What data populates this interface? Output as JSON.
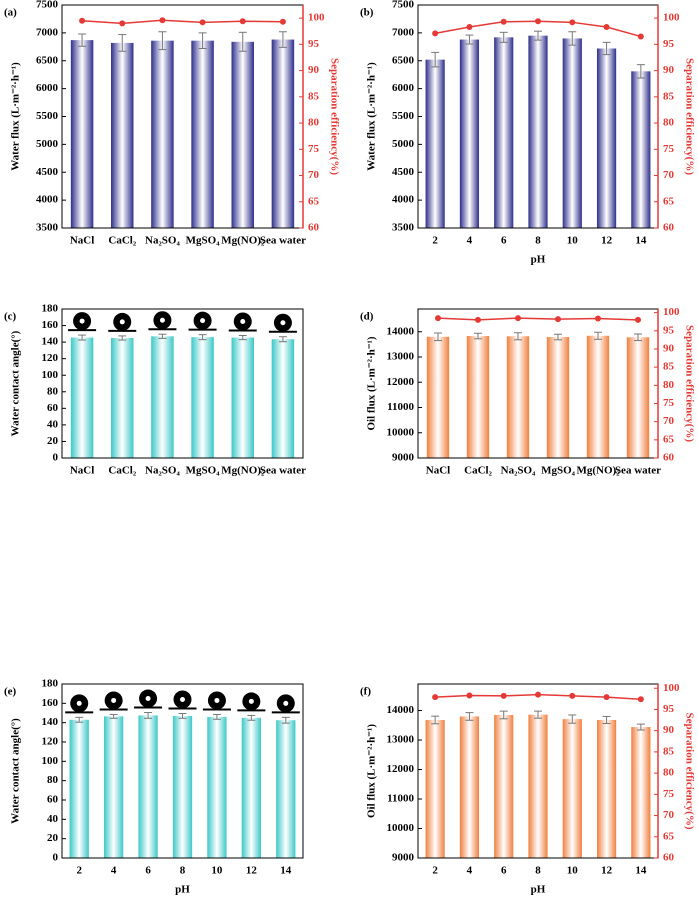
{
  "chart_data": [
    {
      "type": "bar_line",
      "label": "(a)",
      "ylabel": "Water flux (L·m⁻²·h⁻¹)",
      "y2label": "Separation efficiency(%)",
      "categories": [
        "NaCl",
        "CaCl₂",
        "Na₂SO₄",
        "MgSO₄",
        "Mg(NO)₂",
        "Sea water"
      ],
      "ylim": [
        3500,
        7500
      ],
      "yticks": [
        3500,
        4000,
        4500,
        5000,
        5500,
        6000,
        6500,
        7000,
        7500
      ],
      "y2lim": [
        60,
        102.5
      ],
      "y2ticks": [
        60,
        65,
        70,
        75,
        80,
        85,
        90,
        95,
        100
      ],
      "series": [
        {
          "color": "#2e2e8c",
          "values": [
            6870,
            6820,
            6860,
            6860,
            6840,
            6880
          ],
          "errors": [
            110,
            150,
            160,
            140,
            170,
            140
          ]
        },
        {
          "color": "#e53935",
          "axis": "y2",
          "values": [
            99.5,
            99.0,
            99.6,
            99.2,
            99.4,
            99.3
          ]
        }
      ]
    },
    {
      "type": "bar_line",
      "label": "(b)",
      "ylabel": "Water flux (L·m⁻²·h⁻¹)",
      "y2label": "Separation efficiency(%)",
      "xlabel": "pH",
      "categories": [
        "2",
        "4",
        "6",
        "8",
        "10",
        "12",
        "14"
      ],
      "ylim": [
        3500,
        7500
      ],
      "yticks": [
        3500,
        4000,
        4500,
        5000,
        5500,
        6000,
        6500,
        7000,
        7500
      ],
      "y2lim": [
        60,
        102.5
      ],
      "y2ticks": [
        60,
        65,
        70,
        75,
        80,
        85,
        90,
        95,
        100
      ],
      "series": [
        {
          "color": "#2e2e8c",
          "values": [
            6520,
            6880,
            6920,
            6950,
            6900,
            6720,
            6310
          ],
          "errors": [
            130,
            80,
            90,
            80,
            120,
            110,
            120
          ]
        },
        {
          "color": "#e53935",
          "axis": "y2",
          "values": [
            97.1,
            98.3,
            99.3,
            99.4,
            99.2,
            98.3,
            96.5
          ]
        }
      ]
    },
    {
      "type": "bar",
      "label": "(c)",
      "ylabel": "Water contact angle(°)",
      "categories": [
        "NaCl",
        "CaCl₂",
        "Na₂SO₄",
        "MgSO₄",
        "Mg(NO)₂",
        "Sea water"
      ],
      "ylim": [
        0,
        180
      ],
      "yticks": [
        0,
        20,
        40,
        60,
        80,
        100,
        120,
        140,
        160,
        180
      ],
      "series": [
        {
          "color": "#3cc8c8",
          "values": [
            145.5,
            145,
            147,
            146,
            145.5,
            143.5
          ],
          "errors": [
            3,
            2.5,
            2.5,
            3,
            2.5,
            3
          ]
        }
      ]
    },
    {
      "type": "bar_line",
      "label": "(d)",
      "ylabel": "Oil flux (L·m⁻²·h⁻¹)",
      "y2label": "Separation efficiency(%)",
      "categories": [
        "NaCl",
        "CaCl₂",
        "Na₂SO₄",
        "MgSO₄",
        "Mg(NO)₂",
        "Sea water"
      ],
      "ylim": [
        9000,
        14900
      ],
      "yticks": [
        9000,
        10000,
        11000,
        12000,
        13000,
        14000
      ],
      "y2lim": [
        60,
        101
      ],
      "y2ticks": [
        60,
        65,
        70,
        75,
        80,
        85,
        90,
        95,
        100
      ],
      "series": [
        {
          "color": "#f08040",
          "values": [
            13800,
            13830,
            13820,
            13790,
            13840,
            13780
          ],
          "errors": [
            150,
            110,
            140,
            110,
            140,
            130
          ]
        },
        {
          "color": "#e53935",
          "axis": "y2",
          "values": [
            98.5,
            98.0,
            98.5,
            98.2,
            98.4,
            98.0
          ]
        }
      ]
    },
    {
      "type": "bar",
      "label": "(e)",
      "ylabel": "Water contact angle(°)",
      "xlabel": "pH",
      "categories": [
        "2",
        "4",
        "6",
        "8",
        "10",
        "12",
        "14"
      ],
      "ylim": [
        0,
        180
      ],
      "yticks": [
        0,
        20,
        40,
        60,
        80,
        100,
        120,
        140,
        160,
        180
      ],
      "series": [
        {
          "color": "#3cc8c8",
          "values": [
            143,
            146.5,
            147.5,
            147,
            146,
            145,
            142.5
          ],
          "errors": [
            2.5,
            2,
            3,
            2.5,
            2.5,
            2.5,
            3
          ]
        }
      ]
    },
    {
      "type": "bar_line",
      "label": "(f)",
      "ylabel": "Oil flux (L·m⁻²·h⁻¹)",
      "y2label": "Separation efficiency(%)",
      "xlabel": "pH",
      "categories": [
        "2",
        "4",
        "6",
        "8",
        "10",
        "12",
        "14"
      ],
      "ylim": [
        9000,
        14900
      ],
      "yticks": [
        9000,
        10000,
        11000,
        12000,
        13000,
        14000
      ],
      "y2lim": [
        60,
        101
      ],
      "y2ticks": [
        60,
        65,
        70,
        75,
        80,
        85,
        90,
        95,
        100
      ],
      "series": [
        {
          "color": "#f08040",
          "values": [
            13680,
            13800,
            13850,
            13860,
            13710,
            13680,
            13440
          ],
          "errors": [
            130,
            130,
            130,
            120,
            140,
            120,
            100
          ]
        },
        {
          "color": "#e53935",
          "axis": "y2",
          "values": [
            97.9,
            98.3,
            98.2,
            98.5,
            98.2,
            97.9,
            97.4
          ]
        }
      ]
    }
  ]
}
